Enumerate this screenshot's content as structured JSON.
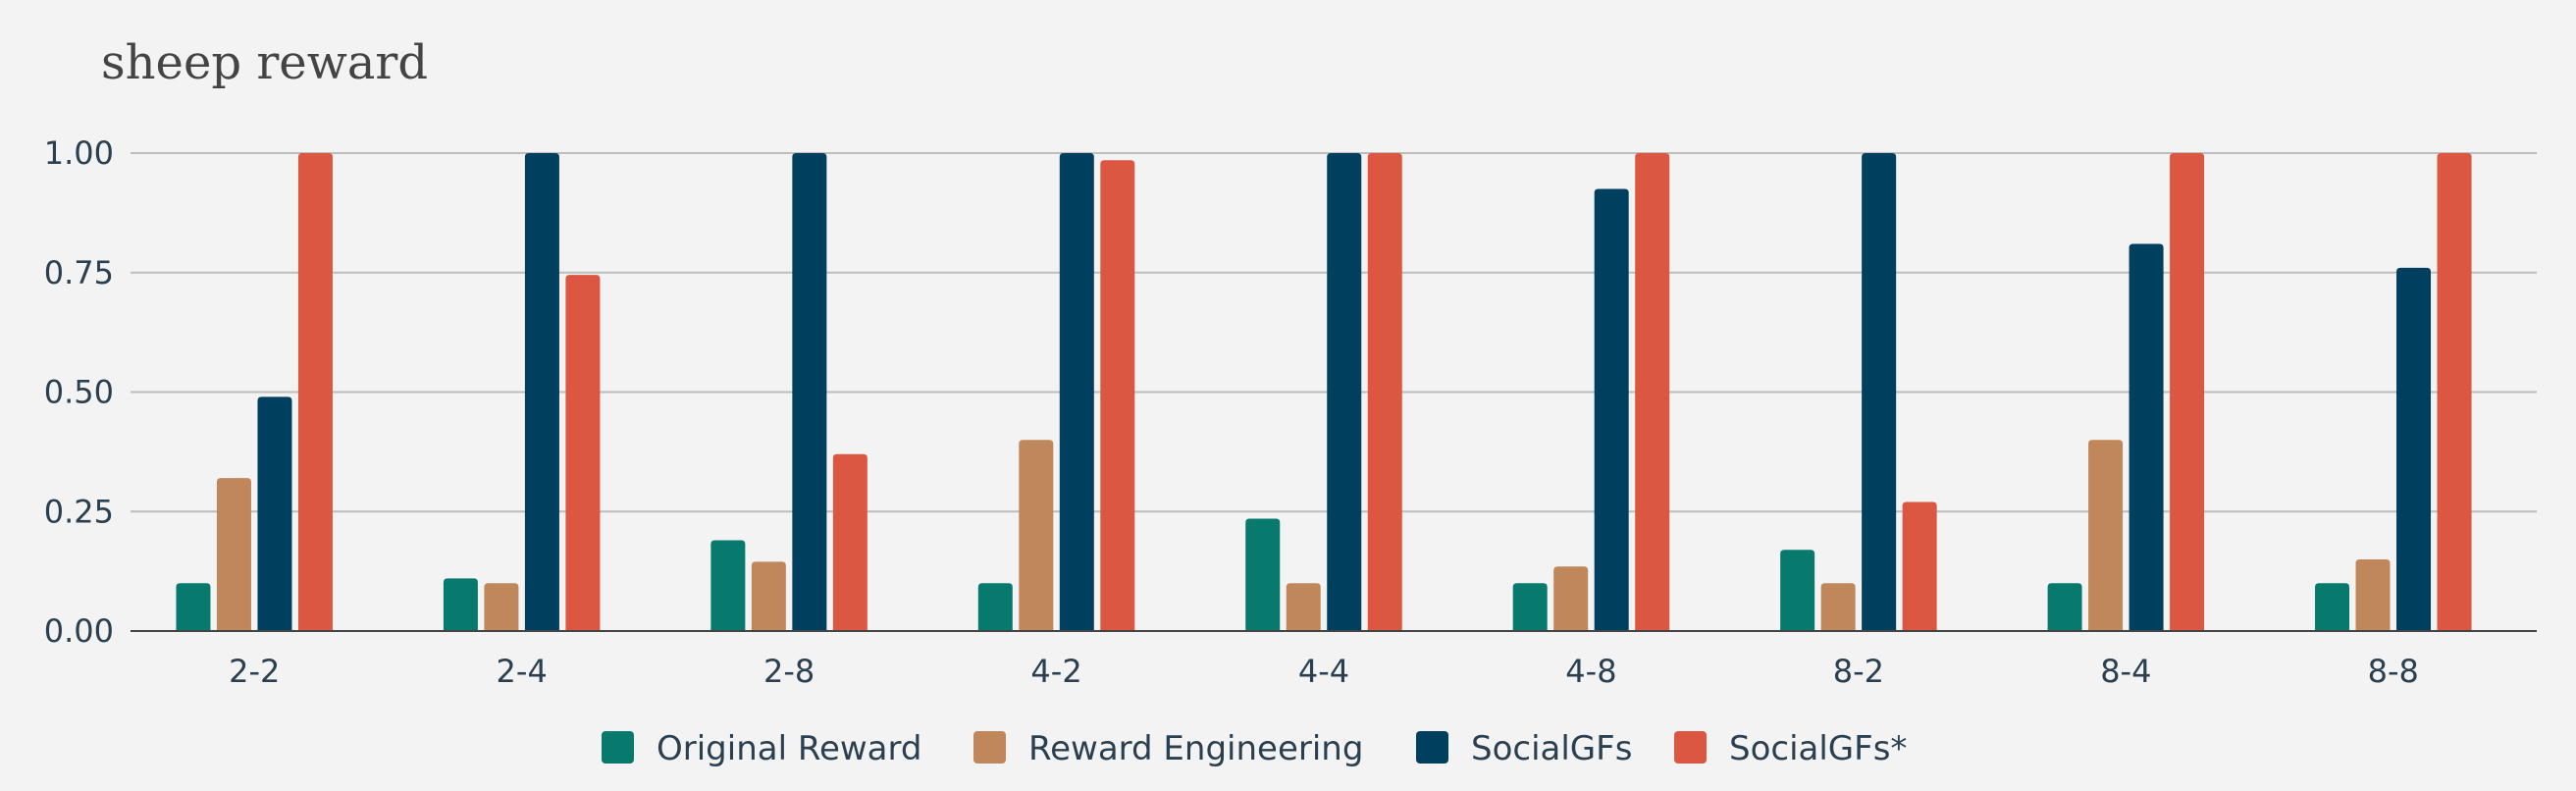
{
  "chart_data": {
    "type": "bar",
    "title": "sheep reward",
    "xlabel": "",
    "ylabel": "",
    "categories": [
      "2-2",
      "2-4",
      "2-8",
      "4-2",
      "4-4",
      "4-8",
      "8-2",
      "8-4",
      "8-8"
    ],
    "ylim": [
      0,
      1
    ],
    "yticks": [
      "0.00",
      "0.25",
      "0.50",
      "0.75",
      "1.00"
    ],
    "grid": true,
    "legend_position": "bottom-center",
    "series": [
      {
        "name": "Original Reward",
        "color": "#077a6d",
        "values": [
          0.1,
          0.11,
          0.19,
          0.1,
          0.235,
          0.1,
          0.17,
          0.1,
          0.1
        ]
      },
      {
        "name": "Reward Engineering",
        "color": "#c0875a",
        "values": [
          0.32,
          0.1,
          0.145,
          0.4,
          0.1,
          0.135,
          0.1,
          0.4,
          0.15
        ]
      },
      {
        "name": "SocialGFs",
        "color": "#00405e",
        "values": [
          0.49,
          1.0,
          1.0,
          1.0,
          1.0,
          0.925,
          1.0,
          0.81,
          0.76
        ]
      },
      {
        "name": "SocialGFs*",
        "color": "#db5741",
        "values": [
          1.0,
          0.745,
          0.37,
          0.985,
          1.0,
          1.0,
          0.27,
          1.0,
          1.0
        ]
      }
    ]
  }
}
